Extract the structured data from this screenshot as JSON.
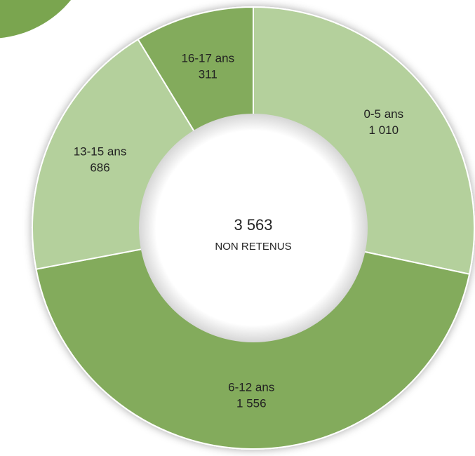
{
  "chart_data": {
    "type": "donut",
    "categories": [
      "0-5 ans",
      "6-12 ans",
      "13-15 ans",
      "16-17 ans"
    ],
    "values": [
      1010,
      1556,
      686,
      311
    ],
    "value_labels": [
      "1 010",
      "1 556",
      "686",
      "311"
    ],
    "colors": [
      "#b4d09c",
      "#83ab5c",
      "#b4d09c",
      "#83ab5c"
    ],
    "center_value": {
      "value": 3563,
      "label": "3 563"
    },
    "center_label": "NON RETENUS"
  }
}
